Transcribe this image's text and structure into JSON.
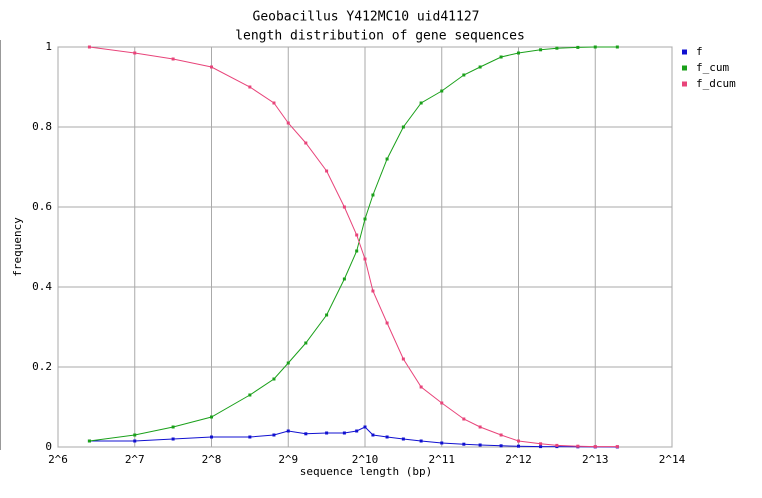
{
  "chart_data": {
    "type": "line",
    "title": "Geobacillus Y412MC10 uid41127",
    "subtitle": "length distribution of gene sequences",
    "x_label": "sequence length (bp)",
    "y_label": "frequency",
    "log_x": true,
    "log_base": 2,
    "grid": true,
    "legend": "right",
    "x": [
      85,
      128,
      181,
      256,
      362,
      450,
      512,
      600,
      724,
      850,
      950,
      1024,
      1100,
      1250,
      1448,
      1700,
      2048,
      2500,
      2896,
      3500,
      4096,
      5000,
      5793,
      7000,
      8192,
      10000
    ],
    "series": [
      {
        "name": "f",
        "color": "#1010d0",
        "values": [
          0.015,
          0.015,
          0.02,
          0.025,
          0.025,
          0.03,
          0.04,
          0.033,
          0.035,
          0.035,
          0.04,
          0.05,
          0.03,
          0.025,
          0.02,
          0.015,
          0.01,
          0.007,
          0.005,
          0.003,
          0.002,
          0.001,
          0.001,
          0.0005,
          0.0002,
          0.0001
        ]
      },
      {
        "name": "f_cum",
        "color": "#1aa01a",
        "values": [
          0.015,
          0.03,
          0.05,
          0.075,
          0.13,
          0.17,
          0.21,
          0.26,
          0.33,
          0.42,
          0.49,
          0.57,
          0.63,
          0.72,
          0.8,
          0.86,
          0.89,
          0.93,
          0.95,
          0.975,
          0.985,
          0.993,
          0.997,
          0.999,
          1,
          1
        ]
      },
      {
        "name": "f_dcum",
        "color": "#e8447a",
        "values": [
          1,
          0.985,
          0.97,
          0.95,
          0.9,
          0.86,
          0.81,
          0.76,
          0.69,
          0.6,
          0.53,
          0.47,
          0.39,
          0.31,
          0.22,
          0.15,
          0.11,
          0.07,
          0.05,
          0.03,
          0.015,
          0.008,
          0.004,
          0.002,
          0.001,
          0.001
        ]
      }
    ],
    "xlim": [
      64,
      16384
    ],
    "xticks": [
      {
        "value": 64,
        "label": "2^6"
      },
      {
        "value": 128,
        "label": "2^7"
      },
      {
        "value": 256,
        "label": "2^8"
      },
      {
        "value": 512,
        "label": "2^9"
      },
      {
        "value": 1024,
        "label": "2^10"
      },
      {
        "value": 2048,
        "label": "2^11"
      },
      {
        "value": 4096,
        "label": "2^12"
      },
      {
        "value": 8192,
        "label": "2^13"
      },
      {
        "value": 16384,
        "label": "2^14"
      }
    ],
    "ylim": [
      0,
      1
    ],
    "yticks": [
      0,
      0.2,
      0.4,
      0.6,
      0.8,
      1
    ]
  }
}
